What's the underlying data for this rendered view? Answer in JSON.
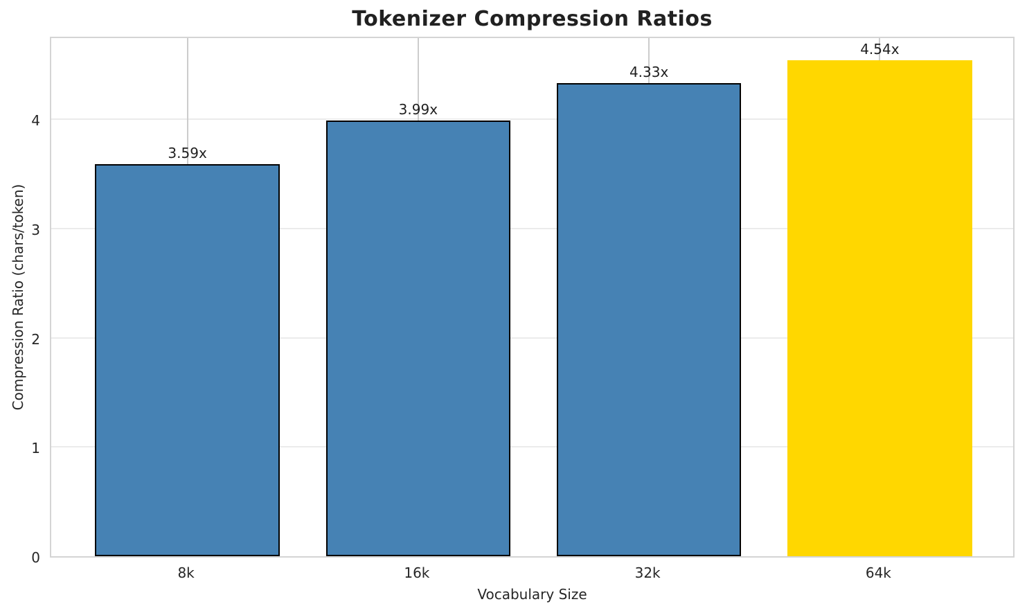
{
  "figure": {
    "title": "Tokenizer Compression Ratios"
  },
  "chart_data": {
    "type": "bar",
    "title": "Tokenizer Compression Ratios",
    "xlabel": "Vocabulary Size",
    "ylabel": "Compression Ratio (chars/token)",
    "categories": [
      "8k",
      "16k",
      "32k",
      "64k"
    ],
    "values": [
      3.59,
      3.99,
      4.33,
      4.54
    ],
    "value_labels": [
      "3.59x",
      "3.99x",
      "4.33x",
      "4.54x"
    ],
    "bar_colors": [
      "#4682b4",
      "#4682b4",
      "#4682b4",
      "#ffd700"
    ],
    "bar_edge_colors": [
      "#000000",
      "#000000",
      "#000000",
      "none"
    ],
    "ytick_labels": [
      "0",
      "1",
      "2",
      "3",
      "4"
    ],
    "yticks": [
      0,
      1,
      2,
      3,
      4
    ],
    "ylim": [
      0,
      4.77
    ],
    "bar_width_units": 0.8,
    "grid": true,
    "legend_position": "none",
    "highlighted_category": "64k"
  },
  "colors": {
    "bar_blue": "#4682b4",
    "bar_gold": "#ffd700",
    "bar_edge": "#000000",
    "grid_horizontal": "#ebebeb",
    "grid_vertical": "#cccccc",
    "spine": "#d4d4d4",
    "text": "#262626",
    "background": "#ffffff"
  }
}
